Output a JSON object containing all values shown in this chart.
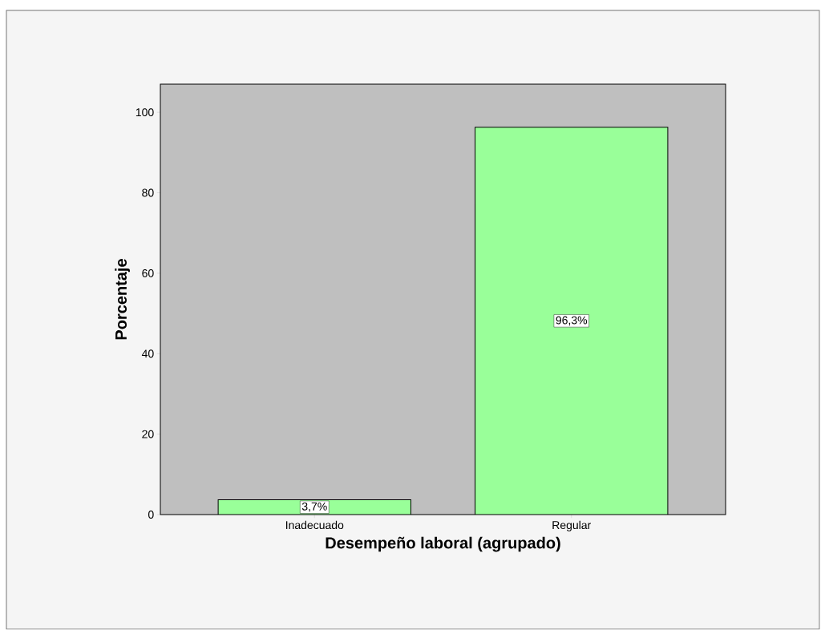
{
  "chart_data": {
    "type": "bar",
    "xlabel": "Desempeño laboral (agrupado)",
    "ylabel": "Porcentaje",
    "categories": [
      "Inadecuado",
      "Regular"
    ],
    "values": [
      3.7,
      96.3
    ],
    "value_labels": [
      "3,7%",
      "96,3%"
    ],
    "color": "#99ff99",
    "ylim": [
      0,
      107
    ],
    "yticks": [
      0,
      20,
      40,
      60,
      80,
      100
    ]
  }
}
